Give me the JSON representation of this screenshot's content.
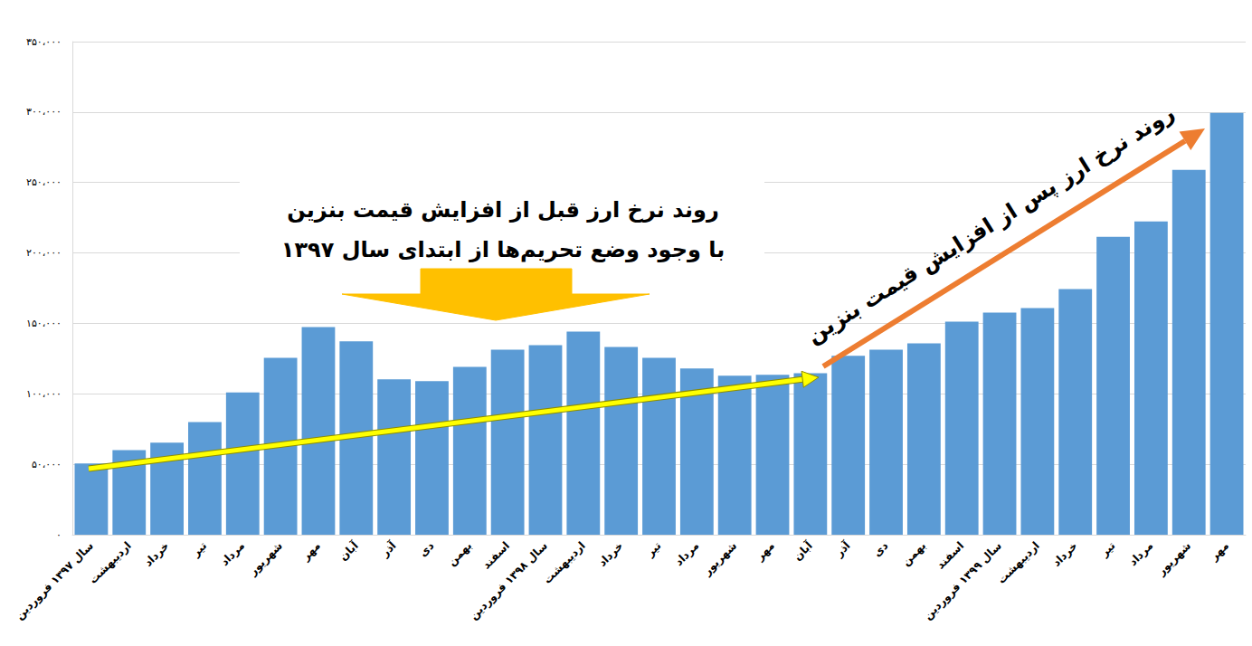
{
  "chart_data": {
    "type": "bar",
    "categories": [
      "سال ۱۳۹۷ فروردین",
      "اردیبهشت",
      "خرداد",
      "تیر",
      "مرداد",
      "شهریور",
      "مهر",
      "آبان",
      "آذر",
      "دی",
      "بهمن",
      "اسفند",
      "سال ۱۳۹۸ فروردین",
      "اردیبهشت",
      "خرداد",
      "تیر",
      "مرداد",
      "شهریور",
      "مهر",
      "آبان",
      "آذر",
      "دی",
      "بهمن",
      "اسفند",
      "سال ۱۳۹۹ فروردین",
      "اردیبهشت",
      "خرداد",
      "تیر",
      "مرداد",
      "شهریور",
      "مهر"
    ],
    "values": [
      50500,
      60000,
      65400,
      80000,
      101000,
      125600,
      147400,
      137200,
      110300,
      109000,
      119200,
      131400,
      134600,
      144200,
      133300,
      125600,
      118000,
      112800,
      113500,
      114700,
      127000,
      131400,
      135900,
      151300,
      157700,
      160900,
      174400,
      211500,
      222400,
      259000,
      299400
    ],
    "color": "#5b9bd5",
    "ylim": [
      0,
      350000
    ],
    "yticks": [
      {
        "value": 0,
        "label": "۰"
      },
      {
        "value": 50000,
        "label": "۵۰،۰۰۰"
      },
      {
        "value": 100000,
        "label": "۱۰۰،۰۰۰"
      },
      {
        "value": 150000,
        "label": "۱۵۰،۰۰۰"
      },
      {
        "value": 200000,
        "label": "۲۰۰،۰۰۰"
      },
      {
        "value": 250000,
        "label": "۲۵۰،۰۰۰"
      },
      {
        "value": 300000,
        "label": "۳۰۰،۰۰۰"
      },
      {
        "value": 350000,
        "label": "۳۵۰،۰۰۰"
      }
    ],
    "grid": true,
    "annotations": [
      "روند نرخ ارز قبل از افزایش قیمت بنزین",
      "با وجود وضع تحریم‌ها از ابتدای سال ۱۳۹۷",
      "روند نرخ ارز پس از افزایش قیمت بنزین"
    ]
  }
}
